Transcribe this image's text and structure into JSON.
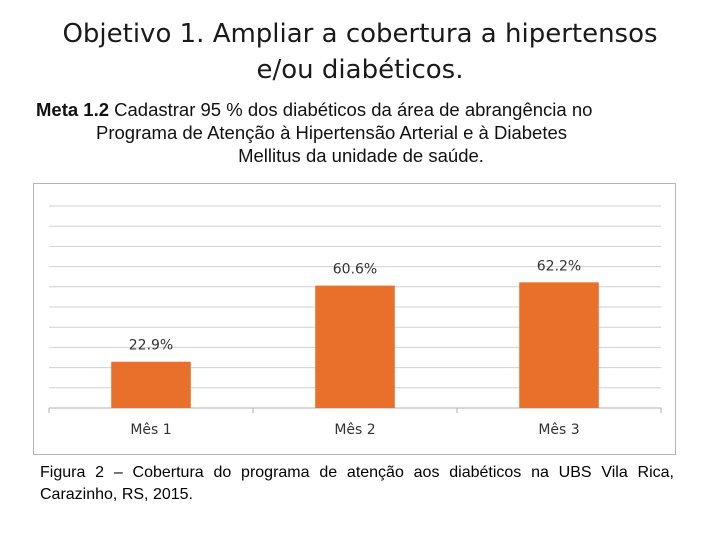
{
  "title": {
    "line1": "Objetivo 1. Ampliar a cobertura a hipertensos",
    "line2": "e/ou diabéticos."
  },
  "meta": {
    "label": "Meta 1.2",
    "line1": " Cadastrar 95 % dos diabéticos da área de abrangência no",
    "line2": "Programa de Atenção à Hipertensão Arterial e à Diabetes",
    "line3": "Mellitus da unidade de saúde."
  },
  "chart_data": {
    "type": "bar",
    "categories": [
      "Mês 1",
      "Mês 2",
      "Mês 3"
    ],
    "values": [
      22.9,
      60.6,
      62.2
    ],
    "value_labels": [
      "22.9%",
      "60.6%",
      "62.2%"
    ],
    "ylim": [
      0,
      100
    ],
    "grid": true,
    "bar_color": "#e8702a",
    "grid_color": "#d0d0d0"
  },
  "caption": "Figura 2 – Cobertura do programa de atenção aos diabéticos na UBS Vila Rica, Carazinho, RS, 2015."
}
